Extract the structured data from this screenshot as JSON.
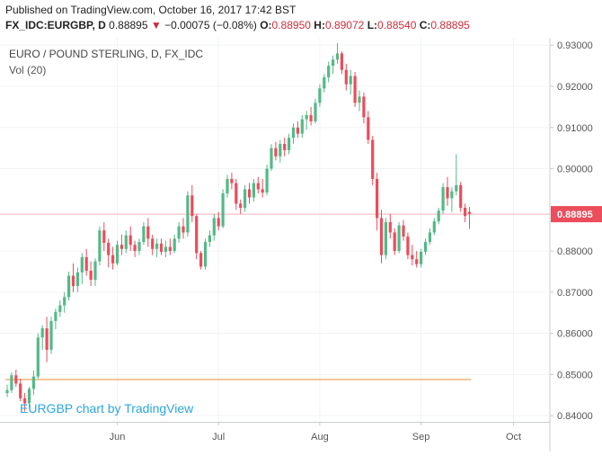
{
  "header": {
    "published": "Published on TradingView.com, October 16, 2017 17:42 BST",
    "symbol": "FX_IDC:EURGBP, D",
    "last": "0.88895",
    "change": "−0.00075 (−0.08%)",
    "open_label": "O:",
    "open": "0.88950",
    "high_label": "H:",
    "high": "0.89072",
    "low_label": "L:",
    "low": "0.88540",
    "close_label": "C:",
    "close": "0.88895"
  },
  "colors": {
    "up": "#53b987",
    "down": "#eb4d5c",
    "price_line": "#f4b3b8",
    "price_tag": "#eb4d5c",
    "grid": "#f0f3f5",
    "axis_text": "#555555",
    "watermark": "#2aa7e0",
    "volume_line": "#f7c59a"
  },
  "chart_data": {
    "type": "candlestick",
    "title": "EURO / POUND STERLING, D, FX_IDC",
    "indicator": "Vol (20)",
    "watermark": "EURGBP chart by TradingView",
    "ylim": [
      0.8385,
      0.9318
    ],
    "y_ticks": [
      "0.93000",
      "0.92000",
      "0.91000",
      "0.90000",
      "0.88000",
      "0.87000",
      "0.86000",
      "0.85000",
      "0.84000"
    ],
    "current_price_label": "0.88895",
    "current_price": 0.88895,
    "x_labels": [
      {
        "label": "Jun",
        "index": 25
      },
      {
        "label": "Jul",
        "index": 48
      },
      {
        "label": "Aug",
        "index": 71
      },
      {
        "label": "Sep",
        "index": 94
      },
      {
        "label": "Oct",
        "index": 115
      }
    ],
    "candles": [
      {
        "o": 0.8455,
        "h": 0.8475,
        "l": 0.8445,
        "c": 0.8462
      },
      {
        "o": 0.8462,
        "h": 0.8505,
        "l": 0.8455,
        "c": 0.8498
      },
      {
        "o": 0.8498,
        "h": 0.8512,
        "l": 0.847,
        "c": 0.8478
      },
      {
        "o": 0.8478,
        "h": 0.849,
        "l": 0.8435,
        "c": 0.8442
      },
      {
        "o": 0.8442,
        "h": 0.8455,
        "l": 0.841,
        "c": 0.843
      },
      {
        "o": 0.843,
        "h": 0.847,
        "l": 0.8418,
        "c": 0.8465
      },
      {
        "o": 0.8465,
        "h": 0.851,
        "l": 0.845,
        "c": 0.8495
      },
      {
        "o": 0.8495,
        "h": 0.86,
        "l": 0.849,
        "c": 0.859
      },
      {
        "o": 0.859,
        "h": 0.862,
        "l": 0.856,
        "c": 0.8612
      },
      {
        "o": 0.8612,
        "h": 0.864,
        "l": 0.853,
        "c": 0.856
      },
      {
        "o": 0.856,
        "h": 0.864,
        "l": 0.855,
        "c": 0.863
      },
      {
        "o": 0.863,
        "h": 0.866,
        "l": 0.861,
        "c": 0.8652
      },
      {
        "o": 0.8652,
        "h": 0.868,
        "l": 0.864,
        "c": 0.8668
      },
      {
        "o": 0.8668,
        "h": 0.87,
        "l": 0.865,
        "c": 0.8688
      },
      {
        "o": 0.8688,
        "h": 0.875,
        "l": 0.868,
        "c": 0.874
      },
      {
        "o": 0.874,
        "h": 0.877,
        "l": 0.87,
        "c": 0.8715
      },
      {
        "o": 0.8715,
        "h": 0.876,
        "l": 0.87,
        "c": 0.8748
      },
      {
        "o": 0.8748,
        "h": 0.8795,
        "l": 0.872,
        "c": 0.8785
      },
      {
        "o": 0.8785,
        "h": 0.8805,
        "l": 0.874,
        "c": 0.8752
      },
      {
        "o": 0.8752,
        "h": 0.8775,
        "l": 0.8715,
        "c": 0.873
      },
      {
        "o": 0.873,
        "h": 0.8782,
        "l": 0.8715,
        "c": 0.8775
      },
      {
        "o": 0.8775,
        "h": 0.886,
        "l": 0.8765,
        "c": 0.885
      },
      {
        "o": 0.885,
        "h": 0.887,
        "l": 0.88,
        "c": 0.882
      },
      {
        "o": 0.882,
        "h": 0.883,
        "l": 0.876,
        "c": 0.879
      },
      {
        "o": 0.879,
        "h": 0.881,
        "l": 0.8755,
        "c": 0.877
      },
      {
        "o": 0.877,
        "h": 0.8825,
        "l": 0.8765,
        "c": 0.8815
      },
      {
        "o": 0.8815,
        "h": 0.884,
        "l": 0.879,
        "c": 0.8805
      },
      {
        "o": 0.8805,
        "h": 0.885,
        "l": 0.8795,
        "c": 0.8838
      },
      {
        "o": 0.8838,
        "h": 0.886,
        "l": 0.88,
        "c": 0.8815
      },
      {
        "o": 0.8815,
        "h": 0.8825,
        "l": 0.8785,
        "c": 0.88
      },
      {
        "o": 0.88,
        "h": 0.883,
        "l": 0.879,
        "c": 0.8822
      },
      {
        "o": 0.8822,
        "h": 0.887,
        "l": 0.8815,
        "c": 0.886
      },
      {
        "o": 0.886,
        "h": 0.888,
        "l": 0.881,
        "c": 0.883
      },
      {
        "o": 0.883,
        "h": 0.884,
        "l": 0.879,
        "c": 0.8805
      },
      {
        "o": 0.8805,
        "h": 0.883,
        "l": 0.8785,
        "c": 0.8818
      },
      {
        "o": 0.8818,
        "h": 0.883,
        "l": 0.879,
        "c": 0.8798
      },
      {
        "o": 0.8798,
        "h": 0.8825,
        "l": 0.8785,
        "c": 0.881
      },
      {
        "o": 0.881,
        "h": 0.883,
        "l": 0.879,
        "c": 0.88
      },
      {
        "o": 0.88,
        "h": 0.884,
        "l": 0.8795,
        "c": 0.883
      },
      {
        "o": 0.883,
        "h": 0.887,
        "l": 0.882,
        "c": 0.886
      },
      {
        "o": 0.886,
        "h": 0.888,
        "l": 0.883,
        "c": 0.8845
      },
      {
        "o": 0.8845,
        "h": 0.8945,
        "l": 0.8835,
        "c": 0.8935
      },
      {
        "o": 0.8935,
        "h": 0.896,
        "l": 0.887,
        "c": 0.8885
      },
      {
        "o": 0.8885,
        "h": 0.889,
        "l": 0.878,
        "c": 0.8795
      },
      {
        "o": 0.8795,
        "h": 0.88,
        "l": 0.8755,
        "c": 0.8762
      },
      {
        "o": 0.8762,
        "h": 0.883,
        "l": 0.8755,
        "c": 0.8822
      },
      {
        "o": 0.8822,
        "h": 0.885,
        "l": 0.881,
        "c": 0.8838
      },
      {
        "o": 0.8838,
        "h": 0.889,
        "l": 0.8825,
        "c": 0.888
      },
      {
        "o": 0.888,
        "h": 0.8895,
        "l": 0.885,
        "c": 0.886
      },
      {
        "o": 0.886,
        "h": 0.895,
        "l": 0.8855,
        "c": 0.894
      },
      {
        "o": 0.894,
        "h": 0.8985,
        "l": 0.893,
        "c": 0.8975
      },
      {
        "o": 0.8975,
        "h": 0.899,
        "l": 0.895,
        "c": 0.8965
      },
      {
        "o": 0.8965,
        "h": 0.8975,
        "l": 0.89,
        "c": 0.8915
      },
      {
        "o": 0.8915,
        "h": 0.8925,
        "l": 0.889,
        "c": 0.8905
      },
      {
        "o": 0.8905,
        "h": 0.896,
        "l": 0.8895,
        "c": 0.895
      },
      {
        "o": 0.895,
        "h": 0.8965,
        "l": 0.8915,
        "c": 0.893
      },
      {
        "o": 0.893,
        "h": 0.8975,
        "l": 0.892,
        "c": 0.8965
      },
      {
        "o": 0.8965,
        "h": 0.898,
        "l": 0.894,
        "c": 0.895
      },
      {
        "o": 0.895,
        "h": 0.8975,
        "l": 0.893,
        "c": 0.8942
      },
      {
        "o": 0.8942,
        "h": 0.901,
        "l": 0.8935,
        "c": 0.9
      },
      {
        "o": 0.9,
        "h": 0.906,
        "l": 0.8995,
        "c": 0.905
      },
      {
        "o": 0.905,
        "h": 0.9065,
        "l": 0.902,
        "c": 0.903
      },
      {
        "o": 0.903,
        "h": 0.907,
        "l": 0.9015,
        "c": 0.906
      },
      {
        "o": 0.906,
        "h": 0.9075,
        "l": 0.903,
        "c": 0.9045
      },
      {
        "o": 0.9045,
        "h": 0.9085,
        "l": 0.9035,
        "c": 0.9075
      },
      {
        "o": 0.9075,
        "h": 0.911,
        "l": 0.906,
        "c": 0.91
      },
      {
        "o": 0.91,
        "h": 0.9115,
        "l": 0.9075,
        "c": 0.9085
      },
      {
        "o": 0.9085,
        "h": 0.913,
        "l": 0.9075,
        "c": 0.912
      },
      {
        "o": 0.912,
        "h": 0.914,
        "l": 0.9095,
        "c": 0.913
      },
      {
        "o": 0.913,
        "h": 0.915,
        "l": 0.9105,
        "c": 0.9115
      },
      {
        "o": 0.9115,
        "h": 0.917,
        "l": 0.911,
        "c": 0.916
      },
      {
        "o": 0.916,
        "h": 0.9205,
        "l": 0.915,
        "c": 0.9195
      },
      {
        "o": 0.9195,
        "h": 0.923,
        "l": 0.9185,
        "c": 0.9222
      },
      {
        "o": 0.9222,
        "h": 0.926,
        "l": 0.921,
        "c": 0.925
      },
      {
        "o": 0.925,
        "h": 0.9275,
        "l": 0.923,
        "c": 0.9265
      },
      {
        "o": 0.9265,
        "h": 0.9305,
        "l": 0.9255,
        "c": 0.928
      },
      {
        "o": 0.928,
        "h": 0.9285,
        "l": 0.923,
        "c": 0.924
      },
      {
        "o": 0.924,
        "h": 0.9255,
        "l": 0.919,
        "c": 0.9205
      },
      {
        "o": 0.9205,
        "h": 0.924,
        "l": 0.918,
        "c": 0.9225
      },
      {
        "o": 0.9225,
        "h": 0.9235,
        "l": 0.915,
        "c": 0.916
      },
      {
        "o": 0.916,
        "h": 0.919,
        "l": 0.914,
        "c": 0.9175
      },
      {
        "o": 0.9175,
        "h": 0.9185,
        "l": 0.911,
        "c": 0.9125
      },
      {
        "o": 0.9125,
        "h": 0.914,
        "l": 0.906,
        "c": 0.907
      },
      {
        "o": 0.907,
        "h": 0.908,
        "l": 0.896,
        "c": 0.8975
      },
      {
        "o": 0.8975,
        "h": 0.899,
        "l": 0.885,
        "c": 0.888
      },
      {
        "o": 0.888,
        "h": 0.89,
        "l": 0.877,
        "c": 0.879
      },
      {
        "o": 0.879,
        "h": 0.888,
        "l": 0.878,
        "c": 0.887
      },
      {
        "o": 0.887,
        "h": 0.889,
        "l": 0.883,
        "c": 0.8845
      },
      {
        "o": 0.8845,
        "h": 0.8855,
        "l": 0.879,
        "c": 0.88
      },
      {
        "o": 0.88,
        "h": 0.887,
        "l": 0.8795,
        "c": 0.8862
      },
      {
        "o": 0.8862,
        "h": 0.8875,
        "l": 0.8825,
        "c": 0.8835
      },
      {
        "o": 0.8835,
        "h": 0.8845,
        "l": 0.878,
        "c": 0.879
      },
      {
        "o": 0.879,
        "h": 0.8815,
        "l": 0.8765,
        "c": 0.878
      },
      {
        "o": 0.878,
        "h": 0.88,
        "l": 0.876,
        "c": 0.8768
      },
      {
        "o": 0.8768,
        "h": 0.8805,
        "l": 0.876,
        "c": 0.8798
      },
      {
        "o": 0.8798,
        "h": 0.883,
        "l": 0.879,
        "c": 0.8822
      },
      {
        "o": 0.8822,
        "h": 0.8855,
        "l": 0.8815,
        "c": 0.8845
      },
      {
        "o": 0.8845,
        "h": 0.888,
        "l": 0.8838,
        "c": 0.8872
      },
      {
        "o": 0.8872,
        "h": 0.8905,
        "l": 0.8865,
        "c": 0.8898
      },
      {
        "o": 0.8898,
        "h": 0.8965,
        "l": 0.889,
        "c": 0.8955
      },
      {
        "o": 0.8955,
        "h": 0.898,
        "l": 0.891,
        "c": 0.8928
      },
      {
        "o": 0.8928,
        "h": 0.8955,
        "l": 0.8895,
        "c": 0.8945
      },
      {
        "o": 0.8945,
        "h": 0.9035,
        "l": 0.8935,
        "c": 0.896
      },
      {
        "o": 0.896,
        "h": 0.8968,
        "l": 0.8895,
        "c": 0.8905
      },
      {
        "o": 0.8905,
        "h": 0.8915,
        "l": 0.887,
        "c": 0.8885
      },
      {
        "o": 0.8895,
        "h": 0.8907,
        "l": 0.8854,
        "c": 0.889
      }
    ]
  }
}
